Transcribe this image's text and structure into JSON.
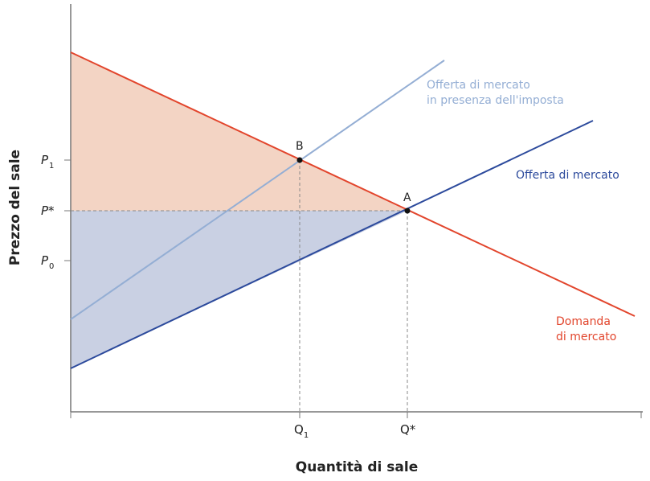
{
  "axes": {
    "ylabel": "Prezzo del sale",
    "xlabel": "Quantità di sale",
    "y_ticks": [
      {
        "main": "P",
        "sub": "1"
      },
      {
        "main": "P*",
        "sub": ""
      },
      {
        "main": "P",
        "sub": "0"
      }
    ],
    "x_ticks": [
      {
        "main": "Q",
        "sub": "1"
      },
      {
        "main": "Q*",
        "sub": ""
      }
    ]
  },
  "curves": {
    "demand": {
      "label_line1": "Domanda",
      "label_line2": "di mercato",
      "color": "#e2452c"
    },
    "supply": {
      "label": "Offerta di mercato",
      "color": "#2c4a9c"
    },
    "supply_tax": {
      "label_line1": "Offerta di mercato",
      "label_line2": "in presenza dell'imposta",
      "color": "#94aed4"
    }
  },
  "points": {
    "A": "A",
    "B": "B"
  },
  "fills": {
    "upper": "#f3d4c4",
    "lower": "#c9d0e3"
  }
}
